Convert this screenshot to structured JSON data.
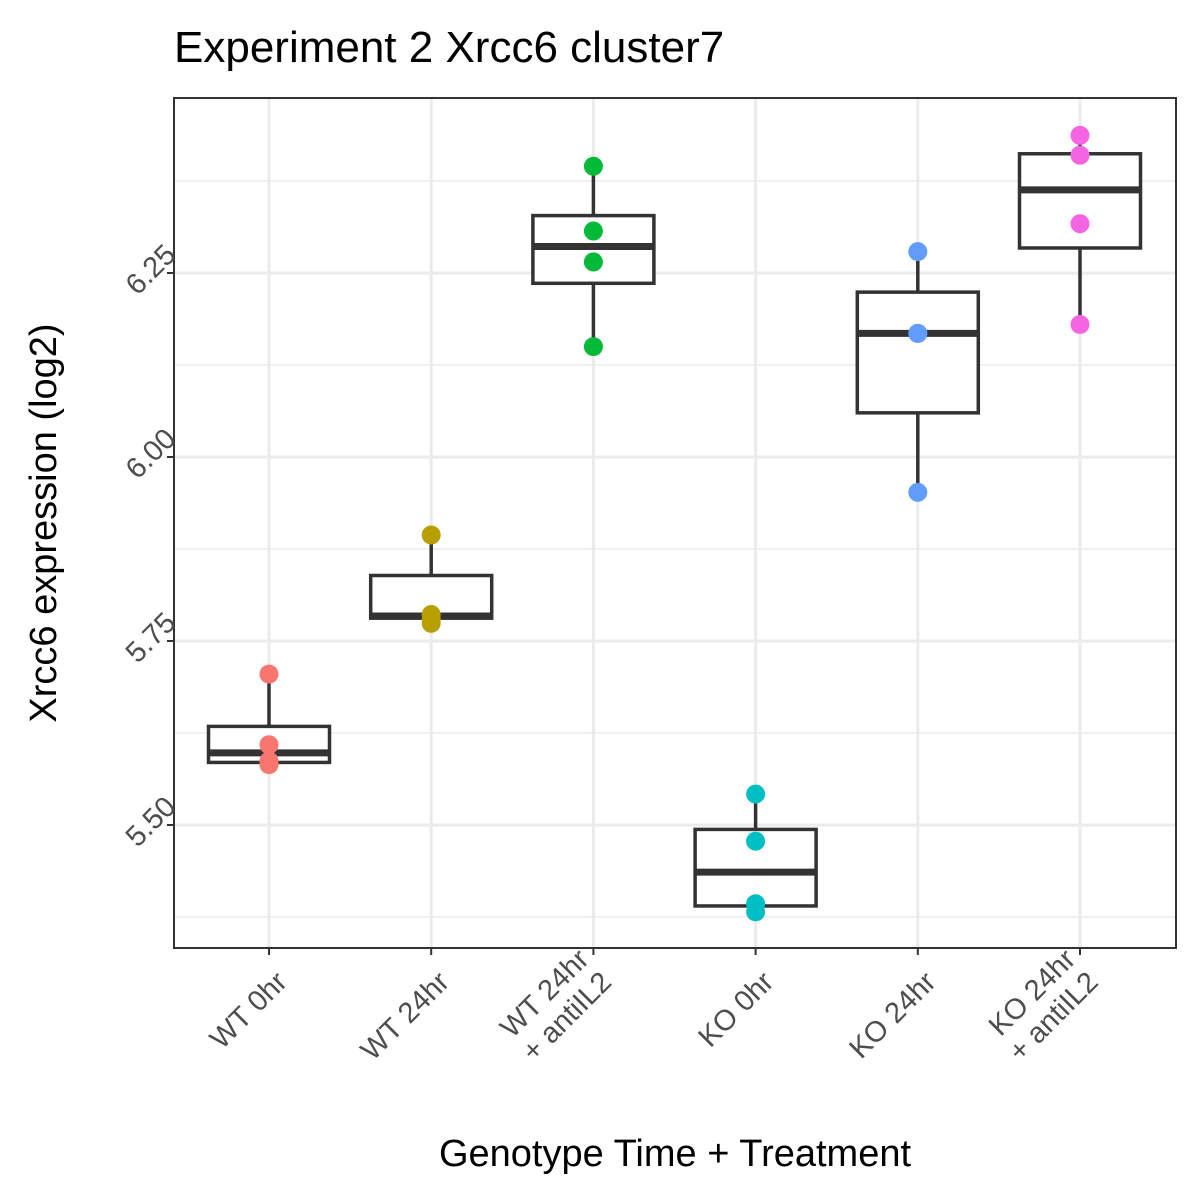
{
  "chart_data": {
    "type": "box",
    "title": "Experiment 2 Xrcc6 cluster7",
    "xlabel": "Genotype Time + Treatment",
    "ylabel": "Xrcc6 expression (log2)",
    "ylim": [
      5.33,
      6.49
    ],
    "y_ticks": [
      5.5,
      5.75,
      6.0,
      6.25
    ],
    "y_tick_labels": [
      "5.50",
      "5.75",
      "6.00",
      "6.25"
    ],
    "grid": true,
    "legend": "none",
    "categories": [
      {
        "label_lines": [
          "WT 0hr"
        ],
        "color": "#F8766D",
        "box": {
          "lower_whisker": 5.583,
          "q1": 5.585,
          "median": 5.598,
          "q3": 5.634,
          "upper_whisker": 5.705
        },
        "points": [
          5.705,
          5.609,
          5.587,
          5.582
        ]
      },
      {
        "label_lines": [
          "WT 24hr"
        ],
        "color": "#B79F00",
        "box": {
          "lower_whisker": 5.774,
          "q1": 5.781,
          "median": 5.784,
          "q3": 5.839,
          "upper_whisker": 5.894
        },
        "points": [
          5.894,
          5.786,
          5.779,
          5.774
        ]
      },
      {
        "label_lines": [
          "WT 24hr",
          "+ antiIL2"
        ],
        "color": "#00BA38",
        "box": {
          "lower_whisker": 6.15,
          "q1": 6.236,
          "median": 6.286,
          "q3": 6.328,
          "upper_whisker": 6.395
        },
        "points": [
          6.395,
          6.307,
          6.265,
          6.15
        ]
      },
      {
        "label_lines": [
          "KO 0hr"
        ],
        "color": "#00BFC4",
        "box": {
          "lower_whisker": 5.379,
          "q1": 5.39,
          "median": 5.436,
          "q3": 5.494,
          "upper_whisker": 5.542
        },
        "points": [
          5.542,
          5.478,
          5.393,
          5.382
        ]
      },
      {
        "label_lines": [
          "KO 24hr"
        ],
        "color": "#619CFF",
        "box": {
          "lower_whisker": 5.952,
          "q1": 6.06,
          "median": 6.168,
          "q3": 6.224,
          "upper_whisker": 6.279
        },
        "points": [
          6.279,
          6.168,
          6.168,
          5.952
        ]
      },
      {
        "label_lines": [
          "KO 24hr",
          "+ antiIL2"
        ],
        "color": "#F564E3",
        "box": {
          "lower_whisker": 6.18,
          "q1": 6.284,
          "median": 6.363,
          "q3": 6.412,
          "upper_whisker": 6.437
        },
        "points": [
          6.437,
          6.41,
          6.317,
          6.18
        ]
      }
    ]
  }
}
